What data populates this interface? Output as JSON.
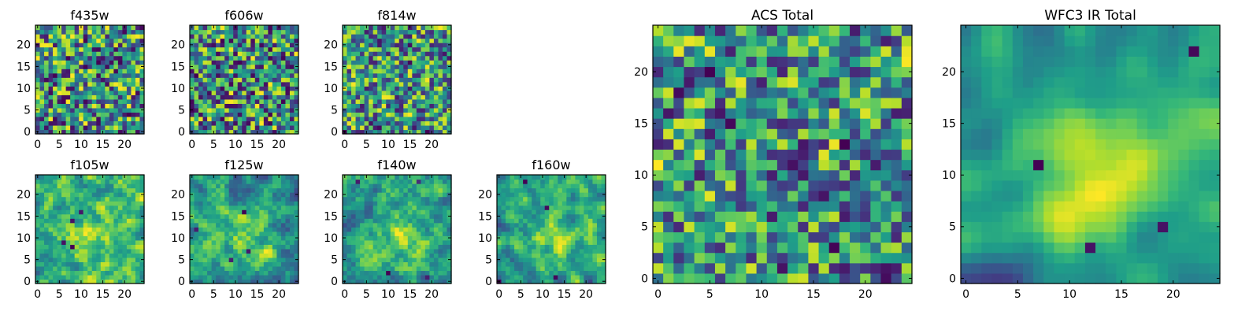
{
  "chart_data": [
    {
      "type": "heatmap",
      "title": "f435w",
      "xlim": [
        0,
        24
      ],
      "ylim": [
        0,
        24
      ],
      "xticks": [
        "0",
        "5",
        "10",
        "15",
        "20"
      ],
      "yticks": [
        "0",
        "5",
        "10",
        "15",
        "20"
      ],
      "colormap": "viridis",
      "seed": 11,
      "smooth": 0.1
    },
    {
      "type": "heatmap",
      "title": "f606w",
      "xlim": [
        0,
        24
      ],
      "ylim": [
        0,
        24
      ],
      "xticks": [
        "0",
        "5",
        "10",
        "15",
        "20"
      ],
      "yticks": [
        "0",
        "5",
        "10",
        "15",
        "20"
      ],
      "colormap": "viridis",
      "seed": 23,
      "smooth": 0.1
    },
    {
      "type": "heatmap",
      "title": "f814w",
      "xlim": [
        0,
        24
      ],
      "ylim": [
        0,
        24
      ],
      "xticks": [
        "0",
        "5",
        "10",
        "15",
        "20"
      ],
      "yticks": [
        "0",
        "5",
        "10",
        "15",
        "20"
      ],
      "colormap": "viridis",
      "seed": 37,
      "smooth": 0.15
    },
    {
      "type": "heatmap",
      "title": "f105w",
      "xlim": [
        0,
        24
      ],
      "ylim": [
        0,
        24
      ],
      "xticks": [
        "0",
        "5",
        "10",
        "15",
        "20"
      ],
      "yticks": [
        "0",
        "5",
        "10",
        "15",
        "20"
      ],
      "colormap": "viridis",
      "seed": 41,
      "smooth": 0.55
    },
    {
      "type": "heatmap",
      "title": "f125w",
      "xlim": [
        0,
        24
      ],
      "ylim": [
        0,
        24
      ],
      "xticks": [
        "0",
        "5",
        "10",
        "15",
        "20"
      ],
      "yticks": [
        "0",
        "5",
        "10",
        "15",
        "20"
      ],
      "colormap": "viridis",
      "seed": 53,
      "smooth": 0.55
    },
    {
      "type": "heatmap",
      "title": "f140w",
      "xlim": [
        0,
        24
      ],
      "ylim": [
        0,
        24
      ],
      "xticks": [
        "0",
        "5",
        "10",
        "15",
        "20"
      ],
      "yticks": [
        "0",
        "5",
        "10",
        "15",
        "20"
      ],
      "colormap": "viridis",
      "seed": 67,
      "smooth": 0.55
    },
    {
      "type": "heatmap",
      "title": "f160w",
      "xlim": [
        0,
        24
      ],
      "ylim": [
        0,
        24
      ],
      "xticks": [
        "0",
        "5",
        "10",
        "15",
        "20"
      ],
      "yticks": [
        "0",
        "5",
        "10",
        "15",
        "20"
      ],
      "colormap": "viridis",
      "seed": 79,
      "smooth": 0.6
    },
    {
      "type": "heatmap",
      "title": "ACS Total",
      "xlim": [
        0,
        24
      ],
      "ylim": [
        0,
        24
      ],
      "xticks": [
        "0",
        "5",
        "10",
        "15",
        "20"
      ],
      "yticks": [
        "0",
        "5",
        "10",
        "15",
        "20"
      ],
      "colormap": "viridis",
      "seed": 83,
      "smooth": 0.2
    },
    {
      "type": "heatmap",
      "title": "WFC3 IR Total",
      "xlim": [
        0,
        24
      ],
      "ylim": [
        0,
        24
      ],
      "xticks": [
        "0",
        "5",
        "10",
        "15",
        "20"
      ],
      "yticks": [
        "0",
        "5",
        "10",
        "15",
        "20"
      ],
      "colormap": "viridis",
      "seed": 97,
      "smooth": 0.8
    }
  ]
}
